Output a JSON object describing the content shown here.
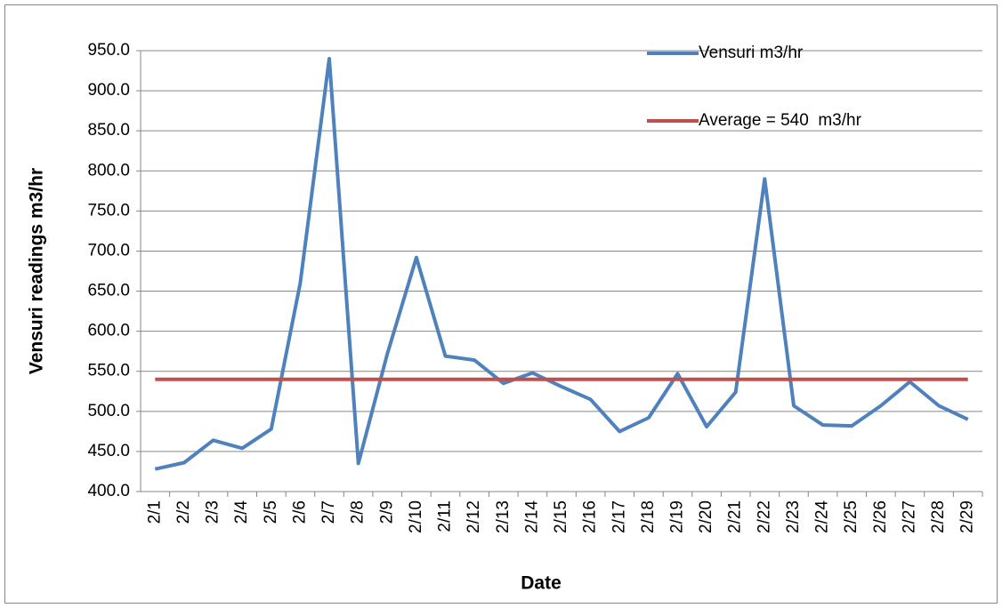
{
  "chart_data": {
    "type": "line",
    "x_label": "Date",
    "y_label": "Vensuri readings m3/hr",
    "categories": [
      "2/1",
      "2/2",
      "2/3",
      "2/4",
      "2/5",
      "2/6",
      "2/7",
      "2/8",
      "2/9",
      "2/10",
      "2/11",
      "2/12",
      "2/13",
      "2/14",
      "2/15",
      "2/16",
      "2/17",
      "2/18",
      "2/19",
      "2/20",
      "2/21",
      "2/22",
      "2/23",
      "2/24",
      "2/25",
      "2/26",
      "2/27",
      "2/28",
      "2/29"
    ],
    "series": [
      {
        "name": "Vensuri m3/hr",
        "color": "#4f81bd",
        "values": [
          428,
          436,
          464,
          454,
          478,
          660,
          940,
          435,
          572,
          692,
          569,
          564,
          535,
          548,
          531,
          515,
          475,
          492,
          547,
          481,
          524,
          790,
          507,
          483,
          482,
          507,
          537,
          507,
          490
        ]
      },
      {
        "name": "Average = 540  m3/hr",
        "color": "#c0504d",
        "values": [
          540,
          540,
          540,
          540,
          540,
          540,
          540,
          540,
          540,
          540,
          540,
          540,
          540,
          540,
          540,
          540,
          540,
          540,
          540,
          540,
          540,
          540,
          540,
          540,
          540,
          540,
          540,
          540,
          540
        ]
      }
    ],
    "ylim": [
      400,
      950
    ],
    "yticks": [
      {
        "value": 400,
        "label": "400.0"
      },
      {
        "value": 450,
        "label": "450.0"
      },
      {
        "value": 500,
        "label": "500.0"
      },
      {
        "value": 550,
        "label": "550.0"
      },
      {
        "value": 600,
        "label": "600.0"
      },
      {
        "value": 650,
        "label": "650.0"
      },
      {
        "value": 700,
        "label": "700.0"
      },
      {
        "value": 750,
        "label": "750.0"
      },
      {
        "value": 800,
        "label": "800.0"
      },
      {
        "value": 850,
        "label": "850.0"
      },
      {
        "value": 900,
        "label": "900.0"
      },
      {
        "value": 950,
        "label": "950.0"
      }
    ],
    "grid": true,
    "legend": "top-right"
  }
}
